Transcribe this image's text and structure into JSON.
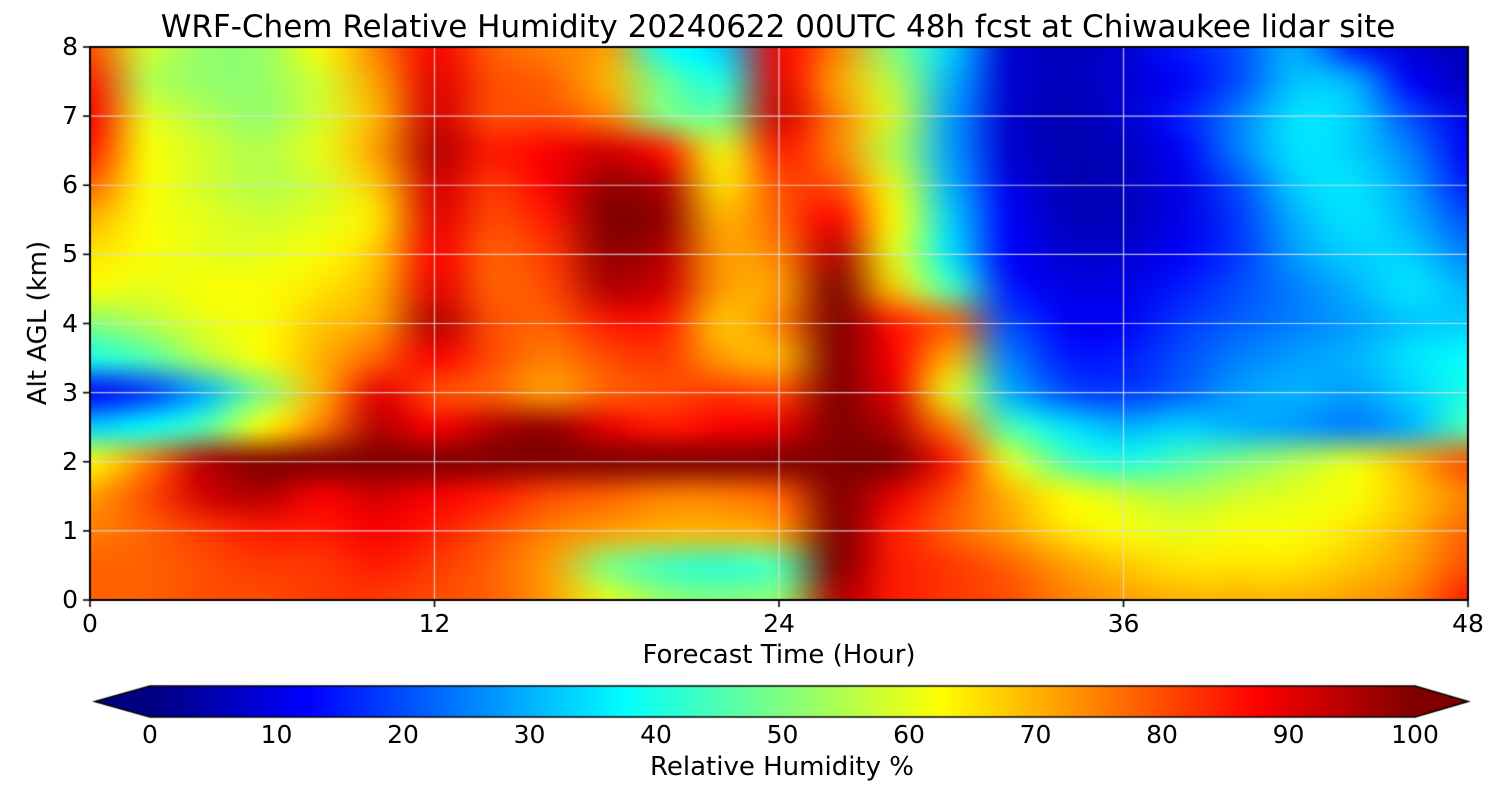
{
  "chart_data": {
    "type": "heatmap",
    "title": "WRF-Chem Relative Humidity 20240622 00UTC 48h fcst at Chiwaukee lidar site",
    "xlabel": "Forecast Time (Hour)",
    "ylabel": "Alt AGL (km)",
    "colorbar_label": "Relative Humidity %",
    "colormap": "jet",
    "vmin": 0,
    "vmax": 100,
    "colorbar_extend": "both",
    "grid": true,
    "x_range": [
      0,
      48
    ],
    "y_range": [
      0,
      8
    ],
    "x_ticks": [
      0,
      12,
      24,
      36,
      48
    ],
    "y_ticks": [
      0,
      1,
      2,
      3,
      4,
      5,
      6,
      7,
      8
    ],
    "colorbar_ticks": [
      0,
      10,
      20,
      30,
      40,
      50,
      60,
      70,
      80,
      90,
      100
    ],
    "x_hours": [
      0,
      2,
      4,
      6,
      8,
      10,
      12,
      14,
      16,
      18,
      20,
      22,
      24,
      26,
      28,
      30,
      32,
      34,
      36,
      38,
      40,
      42,
      44,
      46,
      48
    ],
    "alt_km": [
      0,
      0.5,
      1,
      1.5,
      2,
      2.5,
      3,
      3.5,
      4,
      4.5,
      5,
      5.5,
      6,
      6.5,
      7,
      7.5,
      8
    ],
    "rh_percent": [
      [
        78,
        78,
        80,
        80,
        82,
        82,
        80,
        78,
        72,
        60,
        52,
        50,
        52,
        95,
        85,
        82,
        80,
        75,
        72,
        70,
        70,
        70,
        72,
        75,
        85
      ],
      [
        78,
        78,
        80,
        82,
        82,
        85,
        82,
        78,
        72,
        50,
        44,
        42,
        45,
        100,
        85,
        82,
        78,
        72,
        68,
        65,
        65,
        65,
        68,
        72,
        80
      ],
      [
        75,
        78,
        82,
        85,
        85,
        88,
        85,
        80,
        75,
        72,
        70,
        70,
        72,
        100,
        85,
        78,
        72,
        65,
        62,
        60,
        62,
        62,
        65,
        70,
        78
      ],
      [
        72,
        80,
        92,
        95,
        88,
        92,
        88,
        85,
        80,
        78,
        75,
        75,
        78,
        103,
        90,
        80,
        70,
        62,
        58,
        55,
        58,
        60,
        62,
        68,
        75
      ],
      [
        62,
        75,
        95,
        100,
        100,
        103,
        100,
        103,
        103,
        100,
        100,
        103,
        100,
        103,
        100,
        85,
        60,
        45,
        40,
        45,
        50,
        55,
        60,
        70,
        80
      ],
      [
        33,
        38,
        45,
        62,
        75,
        95,
        88,
        95,
        98,
        90,
        85,
        88,
        90,
        103,
        95,
        75,
        45,
        35,
        30,
        33,
        30,
        28,
        25,
        30,
        45
      ],
      [
        12,
        18,
        30,
        50,
        70,
        90,
        80,
        78,
        72,
        78,
        80,
        82,
        80,
        103,
        90,
        60,
        30,
        20,
        18,
        22,
        28,
        30,
        28,
        33,
        40
      ],
      [
        40,
        45,
        55,
        62,
        70,
        78,
        88,
        80,
        75,
        80,
        82,
        72,
        70,
        103,
        88,
        70,
        25,
        15,
        15,
        20,
        25,
        28,
        30,
        35,
        38
      ],
      [
        50,
        55,
        60,
        62,
        68,
        72,
        95,
        80,
        78,
        85,
        85,
        68,
        75,
        103,
        85,
        78,
        20,
        12,
        12,
        18,
        22,
        25,
        28,
        32,
        33
      ],
      [
        62,
        60,
        62,
        62,
        65,
        70,
        90,
        78,
        80,
        95,
        92,
        72,
        72,
        100,
        68,
        45,
        15,
        10,
        10,
        15,
        20,
        25,
        30,
        35,
        30
      ],
      [
        65,
        62,
        60,
        60,
        62,
        68,
        88,
        78,
        82,
        98,
        95,
        72,
        75,
        95,
        60,
        35,
        12,
        8,
        8,
        12,
        18,
        28,
        33,
        33,
        25
      ],
      [
        70,
        62,
        60,
        58,
        60,
        65,
        90,
        80,
        85,
        100,
        98,
        70,
        78,
        88,
        62,
        33,
        12,
        6,
        6,
        10,
        18,
        30,
        35,
        30,
        20
      ],
      [
        78,
        62,
        58,
        55,
        58,
        68,
        92,
        82,
        88,
        98,
        95,
        65,
        80,
        80,
        60,
        30,
        10,
        5,
        6,
        10,
        20,
        33,
        35,
        28,
        15
      ],
      [
        85,
        62,
        58,
        55,
        60,
        72,
        95,
        85,
        88,
        92,
        85,
        60,
        85,
        75,
        55,
        28,
        8,
        5,
        6,
        12,
        25,
        35,
        33,
        25,
        12
      ],
      [
        88,
        60,
        55,
        52,
        58,
        70,
        92,
        80,
        80,
        75,
        50,
        48,
        92,
        75,
        58,
        28,
        8,
        5,
        8,
        15,
        25,
        35,
        33,
        20,
        10
      ],
      [
        85,
        55,
        52,
        52,
        58,
        72,
        90,
        80,
        78,
        70,
        48,
        40,
        90,
        72,
        55,
        30,
        8,
        6,
        8,
        12,
        20,
        32,
        30,
        12,
        6
      ],
      [
        80,
        58,
        52,
        52,
        62,
        75,
        88,
        78,
        75,
        72,
        38,
        33,
        88,
        75,
        50,
        33,
        8,
        6,
        8,
        15,
        20,
        30,
        15,
        8,
        6
      ]
    ]
  }
}
